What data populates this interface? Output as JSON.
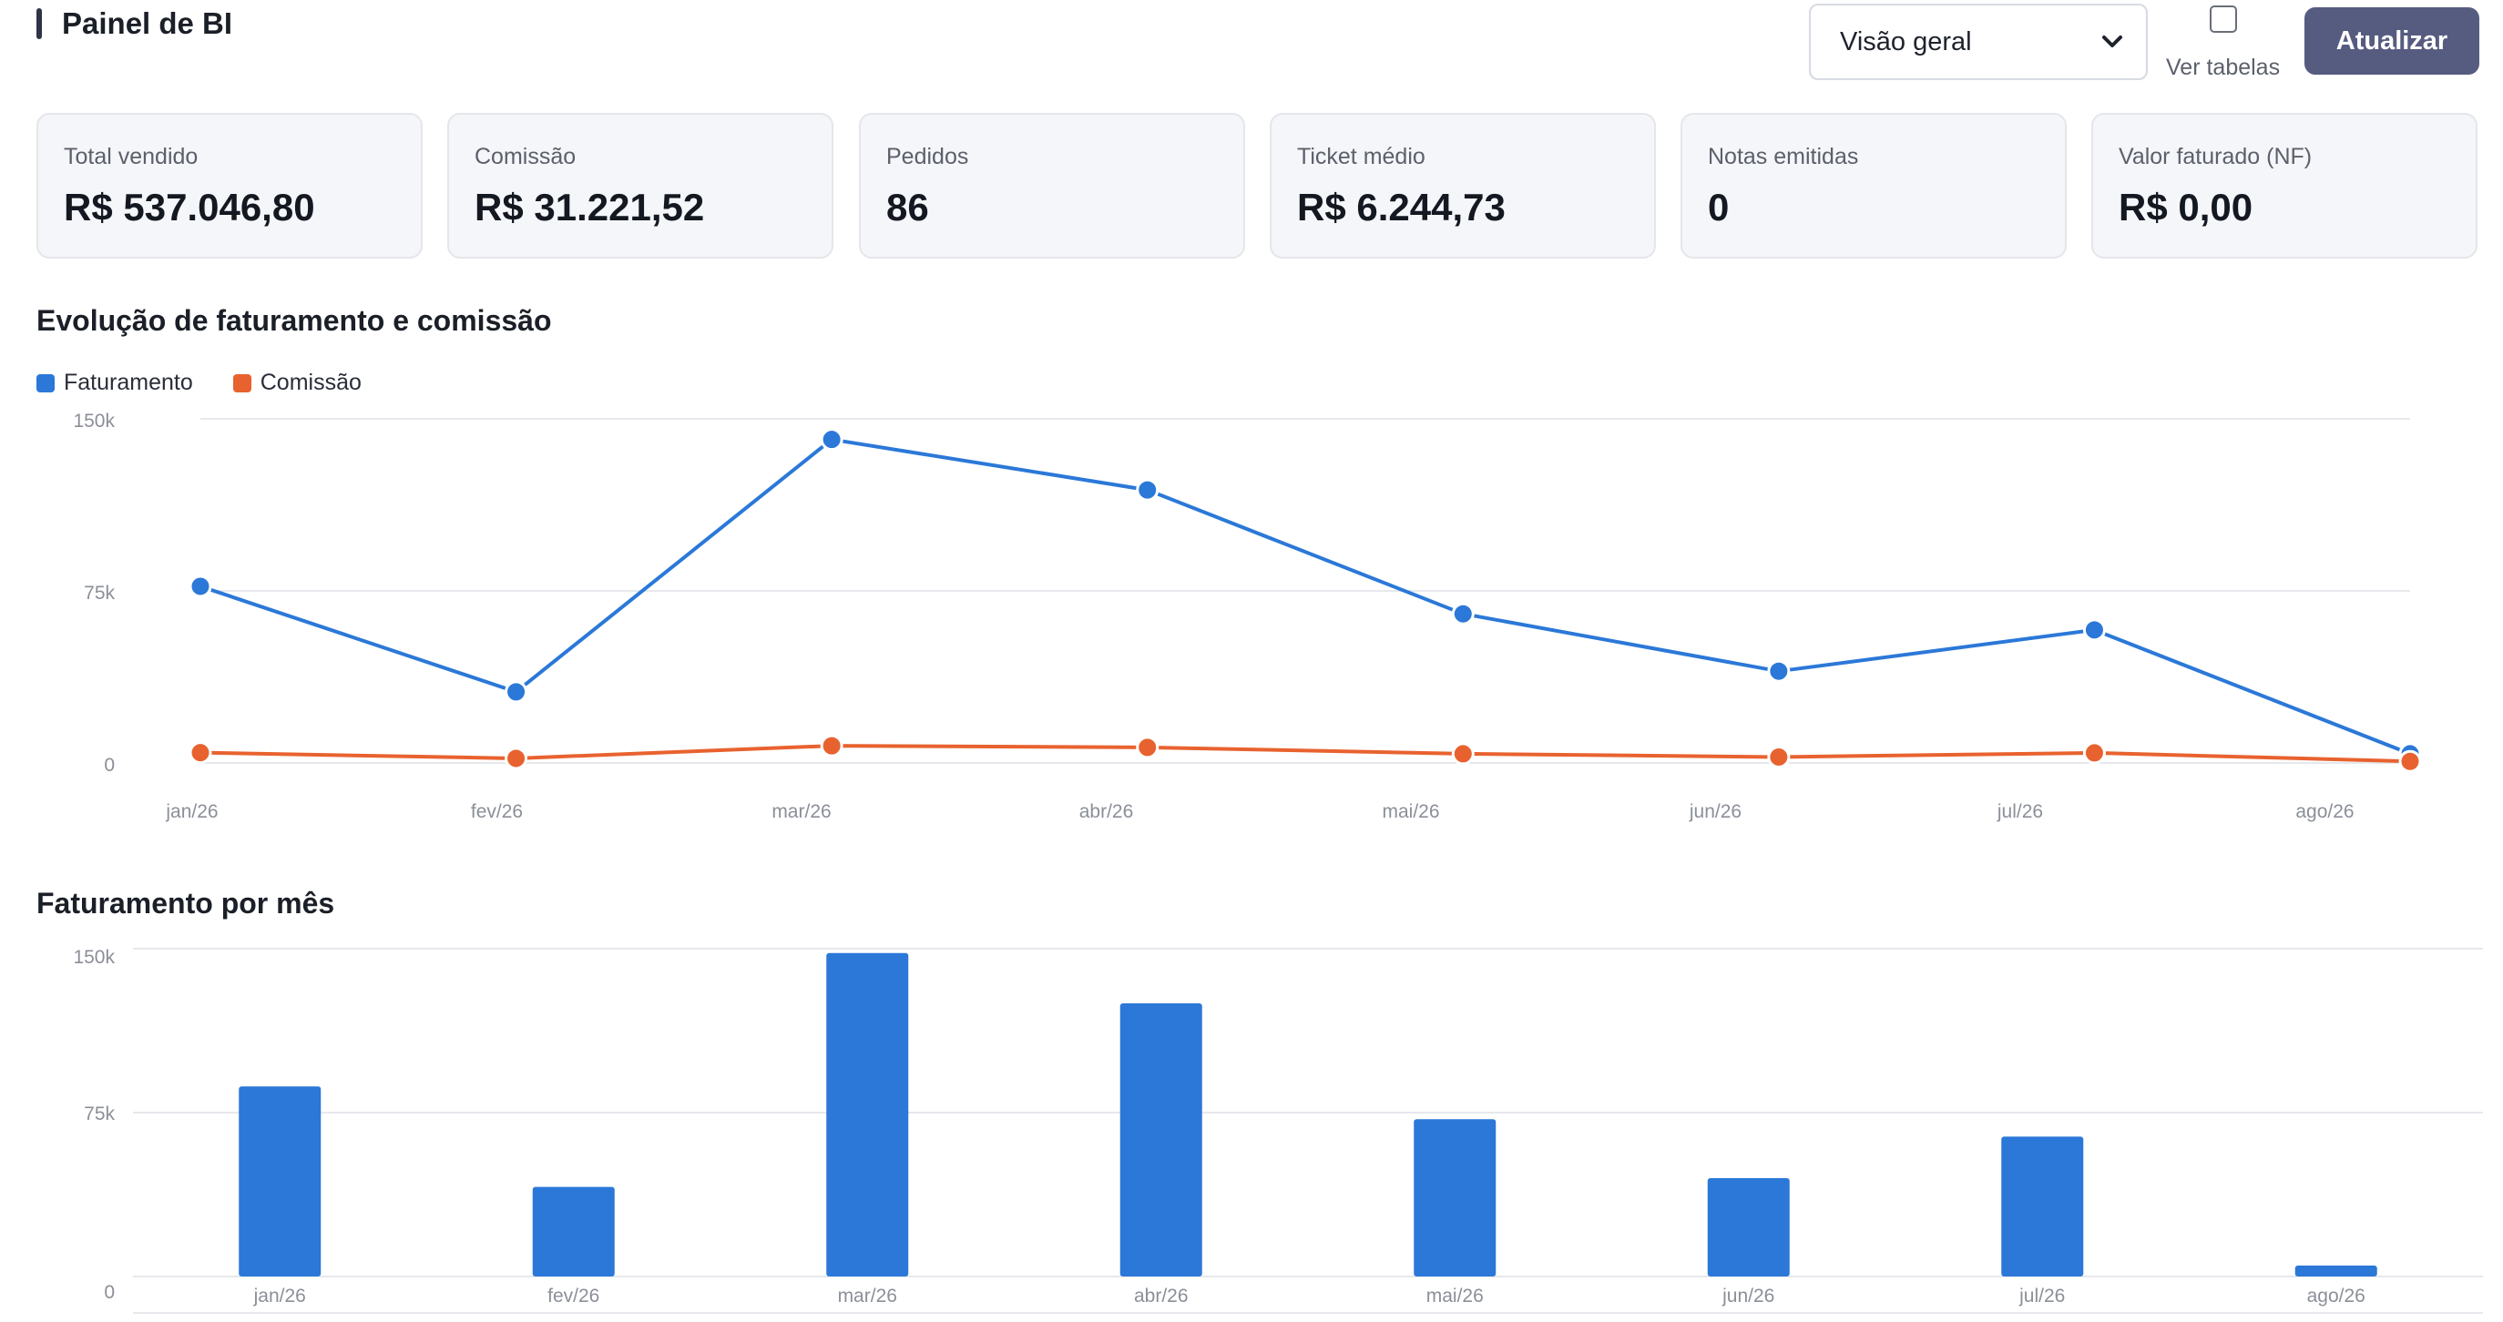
{
  "header": {
    "title": "Painel de BI",
    "view_select": {
      "value": "Visão geral",
      "options": [
        "Visão geral"
      ]
    },
    "show_tables": {
      "label": "Ver tabelas",
      "checked": false
    },
    "refresh_label": "Atualizar"
  },
  "kpis": [
    {
      "label": "Total vendido",
      "value": "R$ 537.046,80"
    },
    {
      "label": "Comissão",
      "value": "R$ 31.221,52"
    },
    {
      "label": "Pedidos",
      "value": "86"
    },
    {
      "label": "Ticket médio",
      "value": "R$ 6.244,73"
    },
    {
      "label": "Notas emitidas",
      "value": "0"
    },
    {
      "label": "Valor faturado (NF)",
      "value": "R$ 0,00"
    }
  ],
  "colors": {
    "faturamento": "#2b78d8",
    "comissao": "#e8622f",
    "button": "#565b80"
  },
  "line_section_title": "Evolução de faturamento e comissão",
  "bar_section_title": "Faturamento por mês",
  "chart_data": [
    {
      "type": "line",
      "x": [
        "jan/26",
        "fev/26",
        "mar/26",
        "abr/26",
        "mai/26",
        "jun/26",
        "jul/26",
        "ago/26"
      ],
      "series": [
        {
          "name": "Faturamento",
          "values": [
            77000,
            31000,
            141000,
            119000,
            65000,
            40000,
            58000,
            4000
          ]
        },
        {
          "name": "Comissão",
          "values": [
            4500,
            2000,
            7500,
            6800,
            4000,
            2600,
            4400,
            700
          ]
        }
      ],
      "yticks": [
        "150k",
        "75k",
        "0"
      ],
      "ylim": [
        0,
        150000
      ],
      "grid": true,
      "legend": "top-left"
    },
    {
      "type": "bar",
      "categories": [
        "jan/26",
        "fev/26",
        "mar/26",
        "abr/26",
        "mai/26",
        "jun/26",
        "jul/26",
        "ago/26"
      ],
      "values": [
        87000,
        41000,
        148000,
        125000,
        72000,
        45000,
        64000,
        5000
      ],
      "yticks": [
        "150k",
        "75k",
        "0"
      ],
      "ylim": [
        0,
        150000
      ],
      "grid": true
    }
  ]
}
